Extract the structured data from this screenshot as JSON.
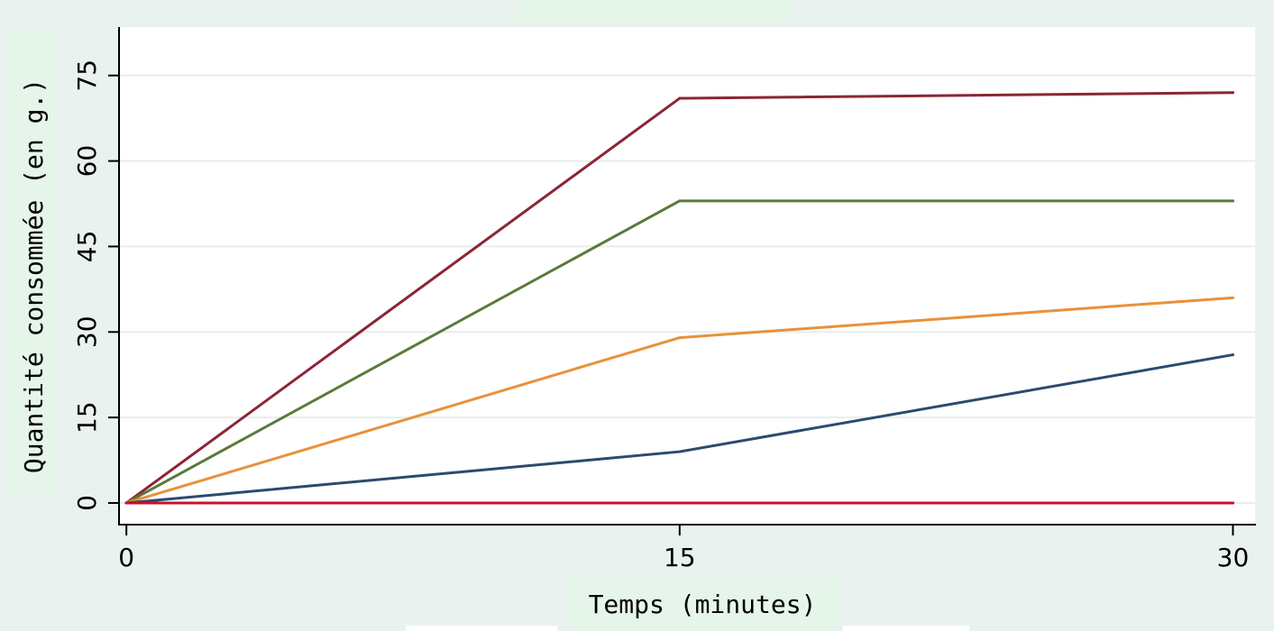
{
  "chart_data": {
    "type": "line",
    "title": "",
    "xlabel": "Temps (minutes)",
    "ylabel": "Quantité consommée (en g.)",
    "x": [
      0,
      15,
      30
    ],
    "x_ticks": [
      0,
      15,
      30
    ],
    "y_ticks": [
      0,
      15,
      30,
      45,
      60,
      75
    ],
    "xlim": [
      -0.2,
      30.6
    ],
    "ylim": [
      -3.8,
      83.5
    ],
    "grid": true,
    "legend": "none",
    "colors": {
      "figure_background": "#eaf2ef",
      "plot_background": "#ffffff",
      "grid": "#e8eeec",
      "axis": "#000000",
      "label_highlight": "#e6f5e9"
    },
    "series": [
      {
        "values": [
          0,
          71,
          72
        ],
        "color": "#8b2535"
      },
      {
        "values": [
          0,
          53,
          53
        ],
        "color": "#5a7a3a"
      },
      {
        "values": [
          0,
          29,
          36
        ],
        "color": "#e8913a"
      },
      {
        "values": [
          0,
          9,
          26
        ],
        "color": "#2c4a6e"
      },
      {
        "values": [
          0,
          0,
          0
        ],
        "color": "#c8102e"
      }
    ]
  }
}
